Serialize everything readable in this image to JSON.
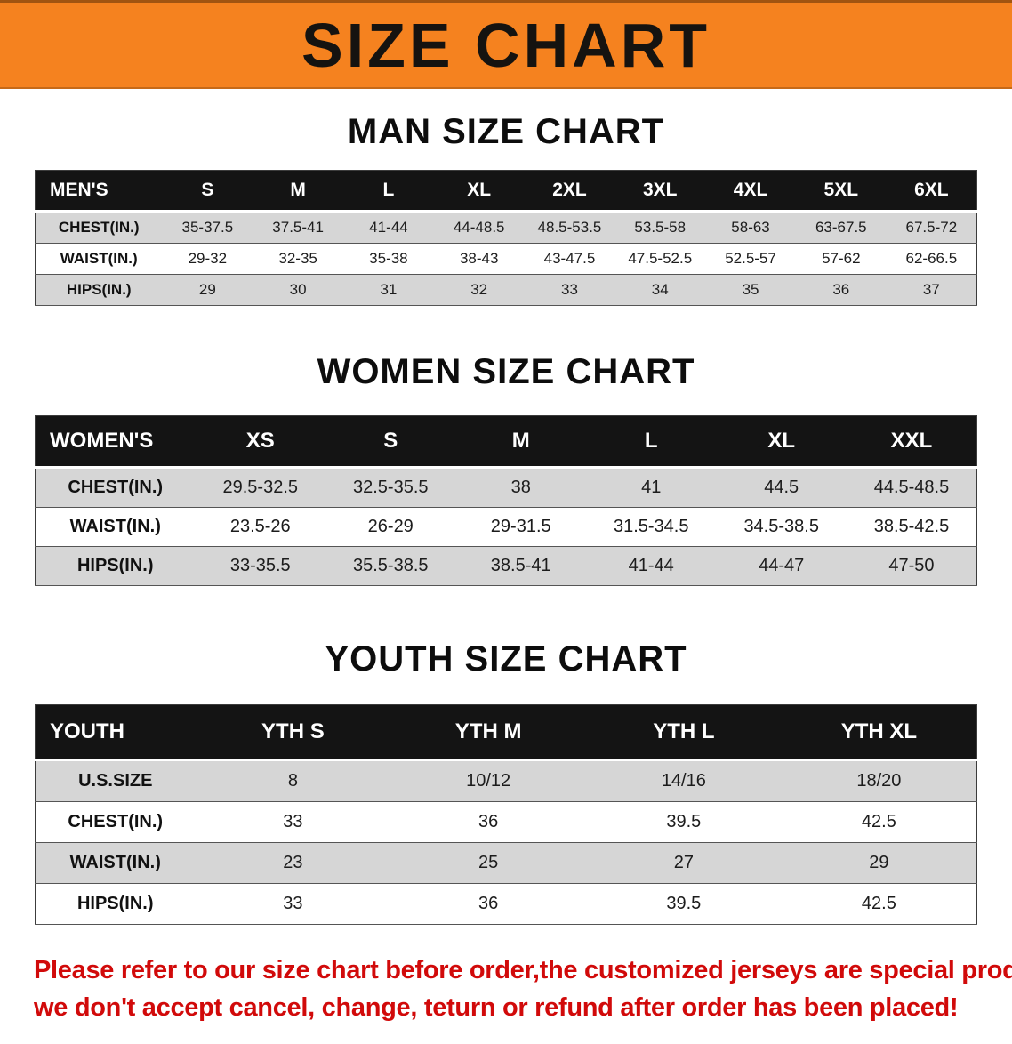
{
  "banner": {
    "title": "SIZE CHART"
  },
  "sections": [
    {
      "id": "men",
      "heading": "MAN SIZE CHART",
      "table": {
        "header": [
          "MEN'S",
          "S",
          "M",
          "L",
          "XL",
          "2XL",
          "3XL",
          "4XL",
          "5XL",
          "6XL"
        ],
        "rows": [
          [
            "CHEST(IN.)",
            "35-37.5",
            "37.5-41",
            "41-44",
            "44-48.5",
            "48.5-53.5",
            "53.5-58",
            "58-63",
            "63-67.5",
            "67.5-72"
          ],
          [
            "WAIST(IN.)",
            "29-32",
            "32-35",
            "35-38",
            "38-43",
            "43-47.5",
            "47.5-52.5",
            "52.5-57",
            "57-62",
            "62-66.5"
          ],
          [
            "HIPS(IN.)",
            "29",
            "30",
            "31",
            "32",
            "33",
            "34",
            "35",
            "36",
            "37"
          ]
        ]
      }
    },
    {
      "id": "women",
      "heading": "WOMEN SIZE CHART",
      "table": {
        "header": [
          "WOMEN'S",
          "XS",
          "S",
          "M",
          "L",
          "XL",
          "XXL"
        ],
        "rows": [
          [
            "CHEST(IN.)",
            "29.5-32.5",
            "32.5-35.5",
            "38",
            "41",
            "44.5",
            "44.5-48.5"
          ],
          [
            "WAIST(IN.)",
            "23.5-26",
            "26-29",
            "29-31.5",
            "31.5-34.5",
            "34.5-38.5",
            "38.5-42.5"
          ],
          [
            "HIPS(IN.)",
            "33-35.5",
            "35.5-38.5",
            "38.5-41",
            "41-44",
            "44-47",
            "47-50"
          ]
        ]
      }
    },
    {
      "id": "youth",
      "heading": "YOUTH SIZE CHART",
      "table": {
        "header": [
          "YOUTH",
          "YTH S",
          "YTH M",
          "YTH L",
          "YTH XL"
        ],
        "rows": [
          [
            "U.S.SIZE",
            "8",
            "10/12",
            "14/16",
            "18/20"
          ],
          [
            "CHEST(IN.)",
            "33",
            "36",
            "39.5",
            "42.5"
          ],
          [
            "WAIST(IN.)",
            "23",
            "25",
            "27",
            "29"
          ],
          [
            "HIPS(IN.)",
            "33",
            "36",
            "39.5",
            "42.5"
          ]
        ]
      }
    }
  ],
  "footer": {
    "lines": [
      "Please refer to our size chart before order,the customized jerseys are special products,",
      "we don't accept cancel, change, teturn or refund after order has been placed!"
    ]
  },
  "colors": {
    "banner_bg": "#f5821f",
    "table_header_bg": "#141414",
    "row_alt_bg": "#d6d6d6",
    "footer_text": "#d10a0a"
  }
}
